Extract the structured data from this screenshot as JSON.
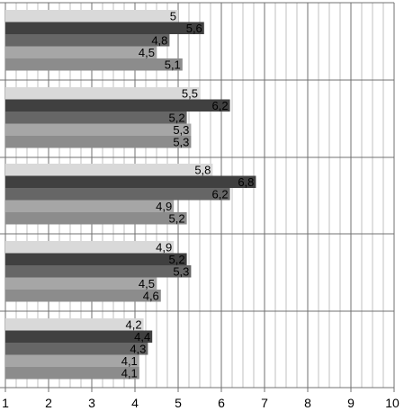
{
  "chart_data": {
    "type": "bar",
    "orientation": "horizontal",
    "xlim": [
      1,
      10
    ],
    "x_major_ticks": [
      1,
      2,
      3,
      4,
      5,
      6,
      7,
      8,
      9,
      10
    ],
    "x_minor_step": 0.25,
    "grid": true,
    "legend": "none",
    "decimal_separator": ",",
    "groups": [
      {
        "values": [
          5,
          5.6,
          4.8,
          4.5,
          5.1
        ],
        "labels": [
          "5",
          "5,6",
          "4,8",
          "4,5",
          "5,1"
        ]
      },
      {
        "values": [
          5.5,
          6.2,
          5.2,
          5.3,
          5.3
        ],
        "labels": [
          "5,5",
          "6,2",
          "5,2",
          "5,3",
          "5,3"
        ]
      },
      {
        "values": [
          5.8,
          6.8,
          6.2,
          4.9,
          5.2
        ],
        "labels": [
          "5,8",
          "6,8",
          "6,2",
          "4,9",
          "5,2"
        ]
      },
      {
        "values": [
          4.9,
          5.2,
          5.3,
          4.5,
          4.6
        ],
        "labels": [
          "4,9",
          "5,2",
          "5,3",
          "4,5",
          "4,6"
        ]
      },
      {
        "values": [
          4.2,
          4.4,
          4.3,
          4.1,
          4.1
        ],
        "labels": [
          "4,2",
          "4,4",
          "4,3",
          "4,1",
          "4,1"
        ]
      }
    ],
    "series_colors": [
      "#d9d9d9",
      "#404040",
      "#666666",
      "#a6a6a6",
      "#8c8c8c"
    ]
  }
}
